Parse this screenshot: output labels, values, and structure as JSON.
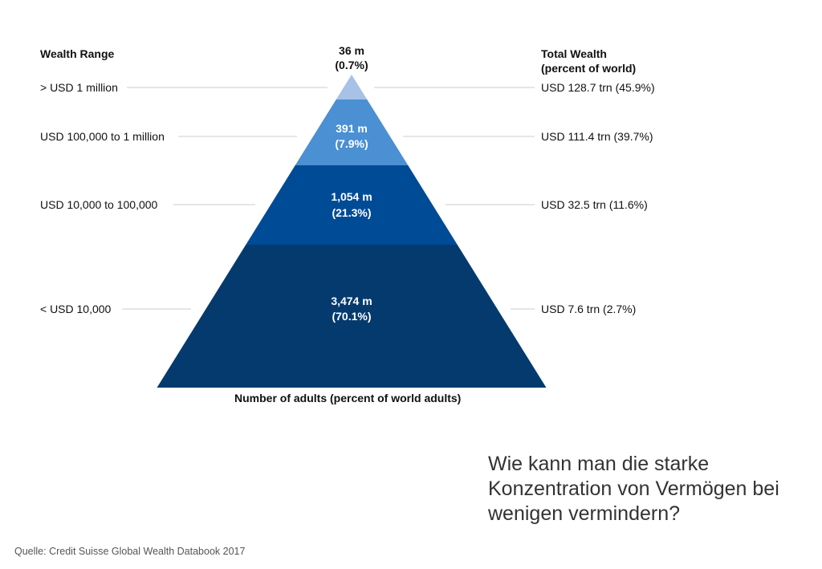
{
  "header": {
    "left_title": "Wealth Range",
    "right_title_line1": "Total Wealth",
    "right_title_line2": "(percent of  world)"
  },
  "chart_data": {
    "type": "pyramid",
    "xlabel": "Number of adults (percent of world adults)",
    "tiers": [
      {
        "range": "> USD 1 million",
        "count_line1": "36 m",
        "count_line2": "(0.7%)",
        "wealth": "USD 128.7 trn (45.9%)",
        "adults_millions": 36,
        "adults_pct": 0.7,
        "wealth_trn": 128.7,
        "wealth_pct": 45.9
      },
      {
        "range": "USD 100,000  to 1 million",
        "count_line1": "391 m",
        "count_line2": "(7.9%)",
        "wealth": "USD 111.4 trn (39.7%)",
        "adults_millions": 391,
        "adults_pct": 7.9,
        "wealth_trn": 111.4,
        "wealth_pct": 39.7
      },
      {
        "range": "USD 10,000  to 100,000",
        "count_line1": "1,054 m",
        "count_line2": "(21.3%)",
        "wealth": "USD 32.5 trn (11.6%)",
        "adults_millions": 1054,
        "adults_pct": 21.3,
        "wealth_trn": 32.5,
        "wealth_pct": 11.6
      },
      {
        "range": "< USD 10,000",
        "count_line1": "3,474 m",
        "count_line2": "(70.1%)",
        "wealth": "USD 7.6 trn (2.7%)",
        "adults_millions": 3474,
        "adults_pct": 70.1,
        "wealth_trn": 7.6,
        "wealth_pct": 2.7
      }
    ],
    "colors": [
      "#a7c2e6",
      "#4a90d2",
      "#004b96",
      "#043a6e"
    ]
  },
  "question": "Wie kann man die starke Konzentration von Vermögen bei wenigen vermindern?",
  "source": "Quelle: Credit Suisse Global Wealth Databook 2017"
}
